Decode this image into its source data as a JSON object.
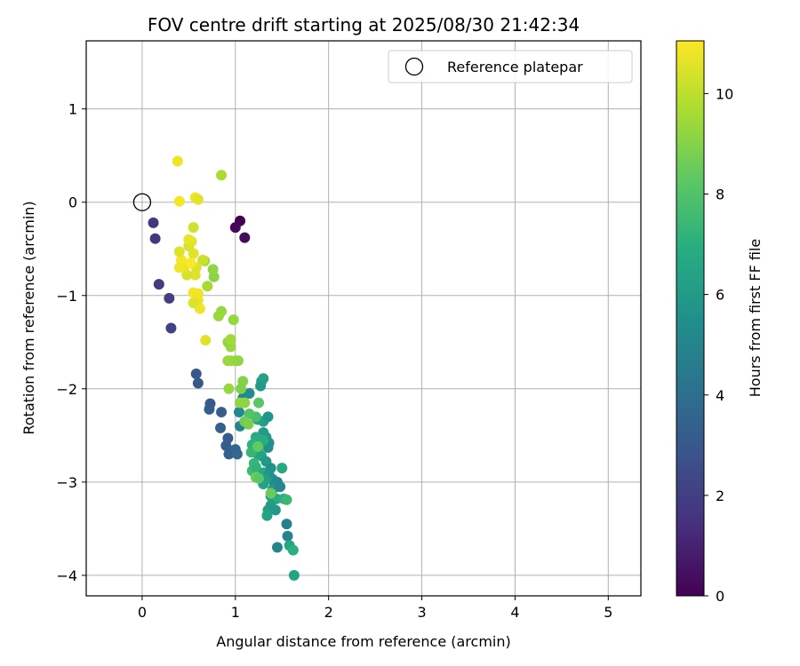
{
  "chart_data": {
    "type": "scatter",
    "title": "FOV centre drift starting at 2025/08/30 21:42:34",
    "xlabel": "Angular distance from reference (arcmin)",
    "ylabel": "Rotation from reference (arcmin)",
    "xlim": [
      -0.6,
      5.35
    ],
    "ylim": [
      -4.22,
      1.73
    ],
    "xticks": [
      0,
      1,
      2,
      3,
      4,
      5
    ],
    "yticks": [
      1,
      0,
      -1,
      -2,
      -3,
      -4
    ],
    "grid": true,
    "legend": {
      "placement": "top-right",
      "entries": [
        "Reference platepar"
      ]
    },
    "reference_point": {
      "name": "Reference platepar",
      "x": 0.0,
      "y": 0.0
    },
    "colorbar": {
      "label": "Hours from first FF file",
      "min": 0,
      "max": 11.05,
      "ticks": [
        0,
        2,
        4,
        6,
        8,
        10
      ],
      "colormap": "viridis"
    },
    "points": [
      {
        "x": 1.05,
        "y": -0.2,
        "c": 0.0
      },
      {
        "x": 1.0,
        "y": -0.27,
        "c": 0.2
      },
      {
        "x": 1.1,
        "y": -0.38,
        "c": 0.3
      },
      {
        "x": 0.12,
        "y": -0.22,
        "c": 1.6
      },
      {
        "x": 0.14,
        "y": -0.39,
        "c": 1.7
      },
      {
        "x": 0.18,
        "y": -0.88,
        "c": 1.9
      },
      {
        "x": 0.29,
        "y": -1.03,
        "c": 2.0
      },
      {
        "x": 0.31,
        "y": -1.35,
        "c": 2.1
      },
      {
        "x": 0.58,
        "y": -1.84,
        "c": 3.0
      },
      {
        "x": 0.6,
        "y": -1.94,
        "c": 3.0
      },
      {
        "x": 0.73,
        "y": -2.16,
        "c": 3.1
      },
      {
        "x": 0.72,
        "y": -2.22,
        "c": 3.2
      },
      {
        "x": 0.85,
        "y": -2.25,
        "c": 3.3
      },
      {
        "x": 0.84,
        "y": -2.42,
        "c": 3.4
      },
      {
        "x": 0.92,
        "y": -2.53,
        "c": 3.2
      },
      {
        "x": 0.9,
        "y": -2.61,
        "c": 3.3
      },
      {
        "x": 0.94,
        "y": -2.69,
        "c": 3.5
      },
      {
        "x": 1.0,
        "y": -2.65,
        "c": 3.6
      },
      {
        "x": 0.93,
        "y": -2.7,
        "c": 3.4
      },
      {
        "x": 1.02,
        "y": -2.7,
        "c": 3.7
      },
      {
        "x": 1.05,
        "y": -2.4,
        "c": 4.8
      },
      {
        "x": 1.08,
        "y": -2.1,
        "c": 5.0
      },
      {
        "x": 1.04,
        "y": -2.25,
        "c": 5.2
      },
      {
        "x": 1.15,
        "y": -2.05,
        "c": 5.3
      },
      {
        "x": 1.28,
        "y": -1.92,
        "c": 6.2
      },
      {
        "x": 1.3,
        "y": -1.89,
        "c": 6.4
      },
      {
        "x": 1.27,
        "y": -1.97,
        "c": 6.0
      },
      {
        "x": 1.24,
        "y": -2.33,
        "c": 6.5
      },
      {
        "x": 1.3,
        "y": -2.35,
        "c": 6.3
      },
      {
        "x": 1.35,
        "y": -2.3,
        "c": 5.8
      },
      {
        "x": 1.3,
        "y": -2.47,
        "c": 6.1
      },
      {
        "x": 1.33,
        "y": -2.52,
        "c": 5.9
      },
      {
        "x": 1.36,
        "y": -2.58,
        "c": 5.6
      },
      {
        "x": 1.28,
        "y": -2.6,
        "c": 6.6
      },
      {
        "x": 1.35,
        "y": -2.63,
        "c": 5.5
      },
      {
        "x": 1.22,
        "y": -2.52,
        "c": 6.8
      },
      {
        "x": 1.3,
        "y": -2.55,
        "c": 6.9
      },
      {
        "x": 1.25,
        "y": -2.63,
        "c": 7.0
      },
      {
        "x": 1.18,
        "y": -2.6,
        "c": 7.1
      },
      {
        "x": 1.2,
        "y": -2.66,
        "c": 7.2
      },
      {
        "x": 1.24,
        "y": -2.7,
        "c": 6.7
      },
      {
        "x": 1.17,
        "y": -2.68,
        "c": 7.3
      },
      {
        "x": 1.28,
        "y": -2.72,
        "c": 6.5
      },
      {
        "x": 1.33,
        "y": -2.78,
        "c": 5.9
      },
      {
        "x": 1.2,
        "y": -2.8,
        "c": 7.4
      },
      {
        "x": 1.18,
        "y": -2.88,
        "c": 7.5
      },
      {
        "x": 1.22,
        "y": -2.84,
        "c": 7.2
      },
      {
        "x": 1.3,
        "y": -2.9,
        "c": 6.6
      },
      {
        "x": 1.38,
        "y": -2.85,
        "c": 5.6
      },
      {
        "x": 1.36,
        "y": -2.92,
        "c": 5.8
      },
      {
        "x": 1.4,
        "y": -2.97,
        "c": 5.4
      },
      {
        "x": 1.45,
        "y": -3.0,
        "c": 5.2
      },
      {
        "x": 1.42,
        "y": -3.03,
        "c": 5.3
      },
      {
        "x": 1.33,
        "y": -2.97,
        "c": 6.2
      },
      {
        "x": 1.3,
        "y": -3.02,
        "c": 6.4
      },
      {
        "x": 1.4,
        "y": -3.08,
        "c": 5.9
      },
      {
        "x": 1.38,
        "y": -3.15,
        "c": 6.0
      },
      {
        "x": 1.48,
        "y": -3.05,
        "c": 5.1
      },
      {
        "x": 1.5,
        "y": -2.85,
        "c": 6.7
      },
      {
        "x": 1.44,
        "y": -3.18,
        "c": 6.8
      },
      {
        "x": 1.52,
        "y": -3.18,
        "c": 7.0
      },
      {
        "x": 1.55,
        "y": -3.19,
        "c": 7.4
      },
      {
        "x": 1.35,
        "y": -3.3,
        "c": 6.2
      },
      {
        "x": 1.38,
        "y": -3.25,
        "c": 6.1
      },
      {
        "x": 1.43,
        "y": -3.3,
        "c": 5.9
      },
      {
        "x": 1.34,
        "y": -3.36,
        "c": 6.5
      },
      {
        "x": 1.55,
        "y": -3.45,
        "c": 4.8
      },
      {
        "x": 1.56,
        "y": -3.58,
        "c": 4.9
      },
      {
        "x": 1.45,
        "y": -3.7,
        "c": 5.0
      },
      {
        "x": 1.58,
        "y": -3.68,
        "c": 6.6
      },
      {
        "x": 1.62,
        "y": -3.73,
        "c": 7.0
      },
      {
        "x": 1.63,
        "y": -4.0,
        "c": 6.5
      },
      {
        "x": 1.22,
        "y": -2.3,
        "c": 7.8
      },
      {
        "x": 1.15,
        "y": -2.27,
        "c": 8.0
      },
      {
        "x": 1.25,
        "y": -2.15,
        "c": 8.2
      },
      {
        "x": 1.1,
        "y": -2.35,
        "c": 8.6
      },
      {
        "x": 1.14,
        "y": -2.38,
        "c": 8.8
      },
      {
        "x": 1.24,
        "y": -2.62,
        "c": 8.4
      },
      {
        "x": 1.22,
        "y": -2.95,
        "c": 8.6
      },
      {
        "x": 1.25,
        "y": -2.96,
        "c": 8.2
      },
      {
        "x": 1.38,
        "y": -3.12,
        "c": 8.5
      },
      {
        "x": 1.08,
        "y": -1.92,
        "c": 9.0
      },
      {
        "x": 1.06,
        "y": -2.0,
        "c": 8.9
      },
      {
        "x": 1.1,
        "y": -2.15,
        "c": 9.1
      },
      {
        "x": 1.05,
        "y": -2.15,
        "c": 9.2
      },
      {
        "x": 0.93,
        "y": -2.0,
        "c": 9.3
      },
      {
        "x": 0.92,
        "y": -1.7,
        "c": 9.3
      },
      {
        "x": 0.95,
        "y": -1.7,
        "c": 9.4
      },
      {
        "x": 1.0,
        "y": -1.7,
        "c": 9.3
      },
      {
        "x": 1.03,
        "y": -1.7,
        "c": 9.2
      },
      {
        "x": 0.95,
        "y": -1.55,
        "c": 9.4
      },
      {
        "x": 0.92,
        "y": -1.5,
        "c": 9.2
      },
      {
        "x": 0.95,
        "y": -1.47,
        "c": 9.5
      },
      {
        "x": 0.98,
        "y": -1.26,
        "c": 9.3
      },
      {
        "x": 0.85,
        "y": -1.17,
        "c": 9.3
      },
      {
        "x": 0.82,
        "y": -1.22,
        "c": 9.4
      },
      {
        "x": 0.77,
        "y": -0.8,
        "c": 9.1
      },
      {
        "x": 0.76,
        "y": -0.72,
        "c": 9.2
      },
      {
        "x": 0.67,
        "y": -0.63,
        "c": 9.5
      },
      {
        "x": 0.7,
        "y": -0.9,
        "c": 9.6
      },
      {
        "x": 0.85,
        "y": 0.29,
        "c": 9.7
      },
      {
        "x": 0.65,
        "y": -0.62,
        "c": 10.2
      },
      {
        "x": 0.68,
        "y": -1.48,
        "c": 10.6
      },
      {
        "x": 0.62,
        "y": -1.14,
        "c": 10.8
      },
      {
        "x": 0.6,
        "y": -1.05,
        "c": 10.7
      },
      {
        "x": 0.55,
        "y": -1.08,
        "c": 10.5
      },
      {
        "x": 0.55,
        "y": -0.97,
        "c": 10.9
      },
      {
        "x": 0.6,
        "y": -0.98,
        "c": 10.8
      },
      {
        "x": 0.57,
        "y": -0.78,
        "c": 10.6
      },
      {
        "x": 0.58,
        "y": -0.7,
        "c": 10.5
      },
      {
        "x": 0.55,
        "y": -0.55,
        "c": 10.6
      },
      {
        "x": 0.48,
        "y": -0.78,
        "c": 10.4
      },
      {
        "x": 0.45,
        "y": -0.7,
        "c": 10.7
      },
      {
        "x": 0.4,
        "y": -0.7,
        "c": 10.8
      },
      {
        "x": 0.42,
        "y": -0.62,
        "c": 10.9
      },
      {
        "x": 0.4,
        "y": -0.53,
        "c": 10.5
      },
      {
        "x": 0.5,
        "y": -0.47,
        "c": 10.4
      },
      {
        "x": 0.53,
        "y": -0.42,
        "c": 10.6
      },
      {
        "x": 0.5,
        "y": -0.4,
        "c": 10.7
      },
      {
        "x": 0.55,
        "y": -0.27,
        "c": 10.3
      },
      {
        "x": 0.52,
        "y": -0.65,
        "c": 11.0
      },
      {
        "x": 0.38,
        "y": 0.44,
        "c": 10.8
      },
      {
        "x": 0.4,
        "y": 0.01,
        "c": 10.9
      },
      {
        "x": 0.57,
        "y": 0.05,
        "c": 10.8
      },
      {
        "x": 0.6,
        "y": 0.03,
        "c": 10.6
      }
    ]
  }
}
